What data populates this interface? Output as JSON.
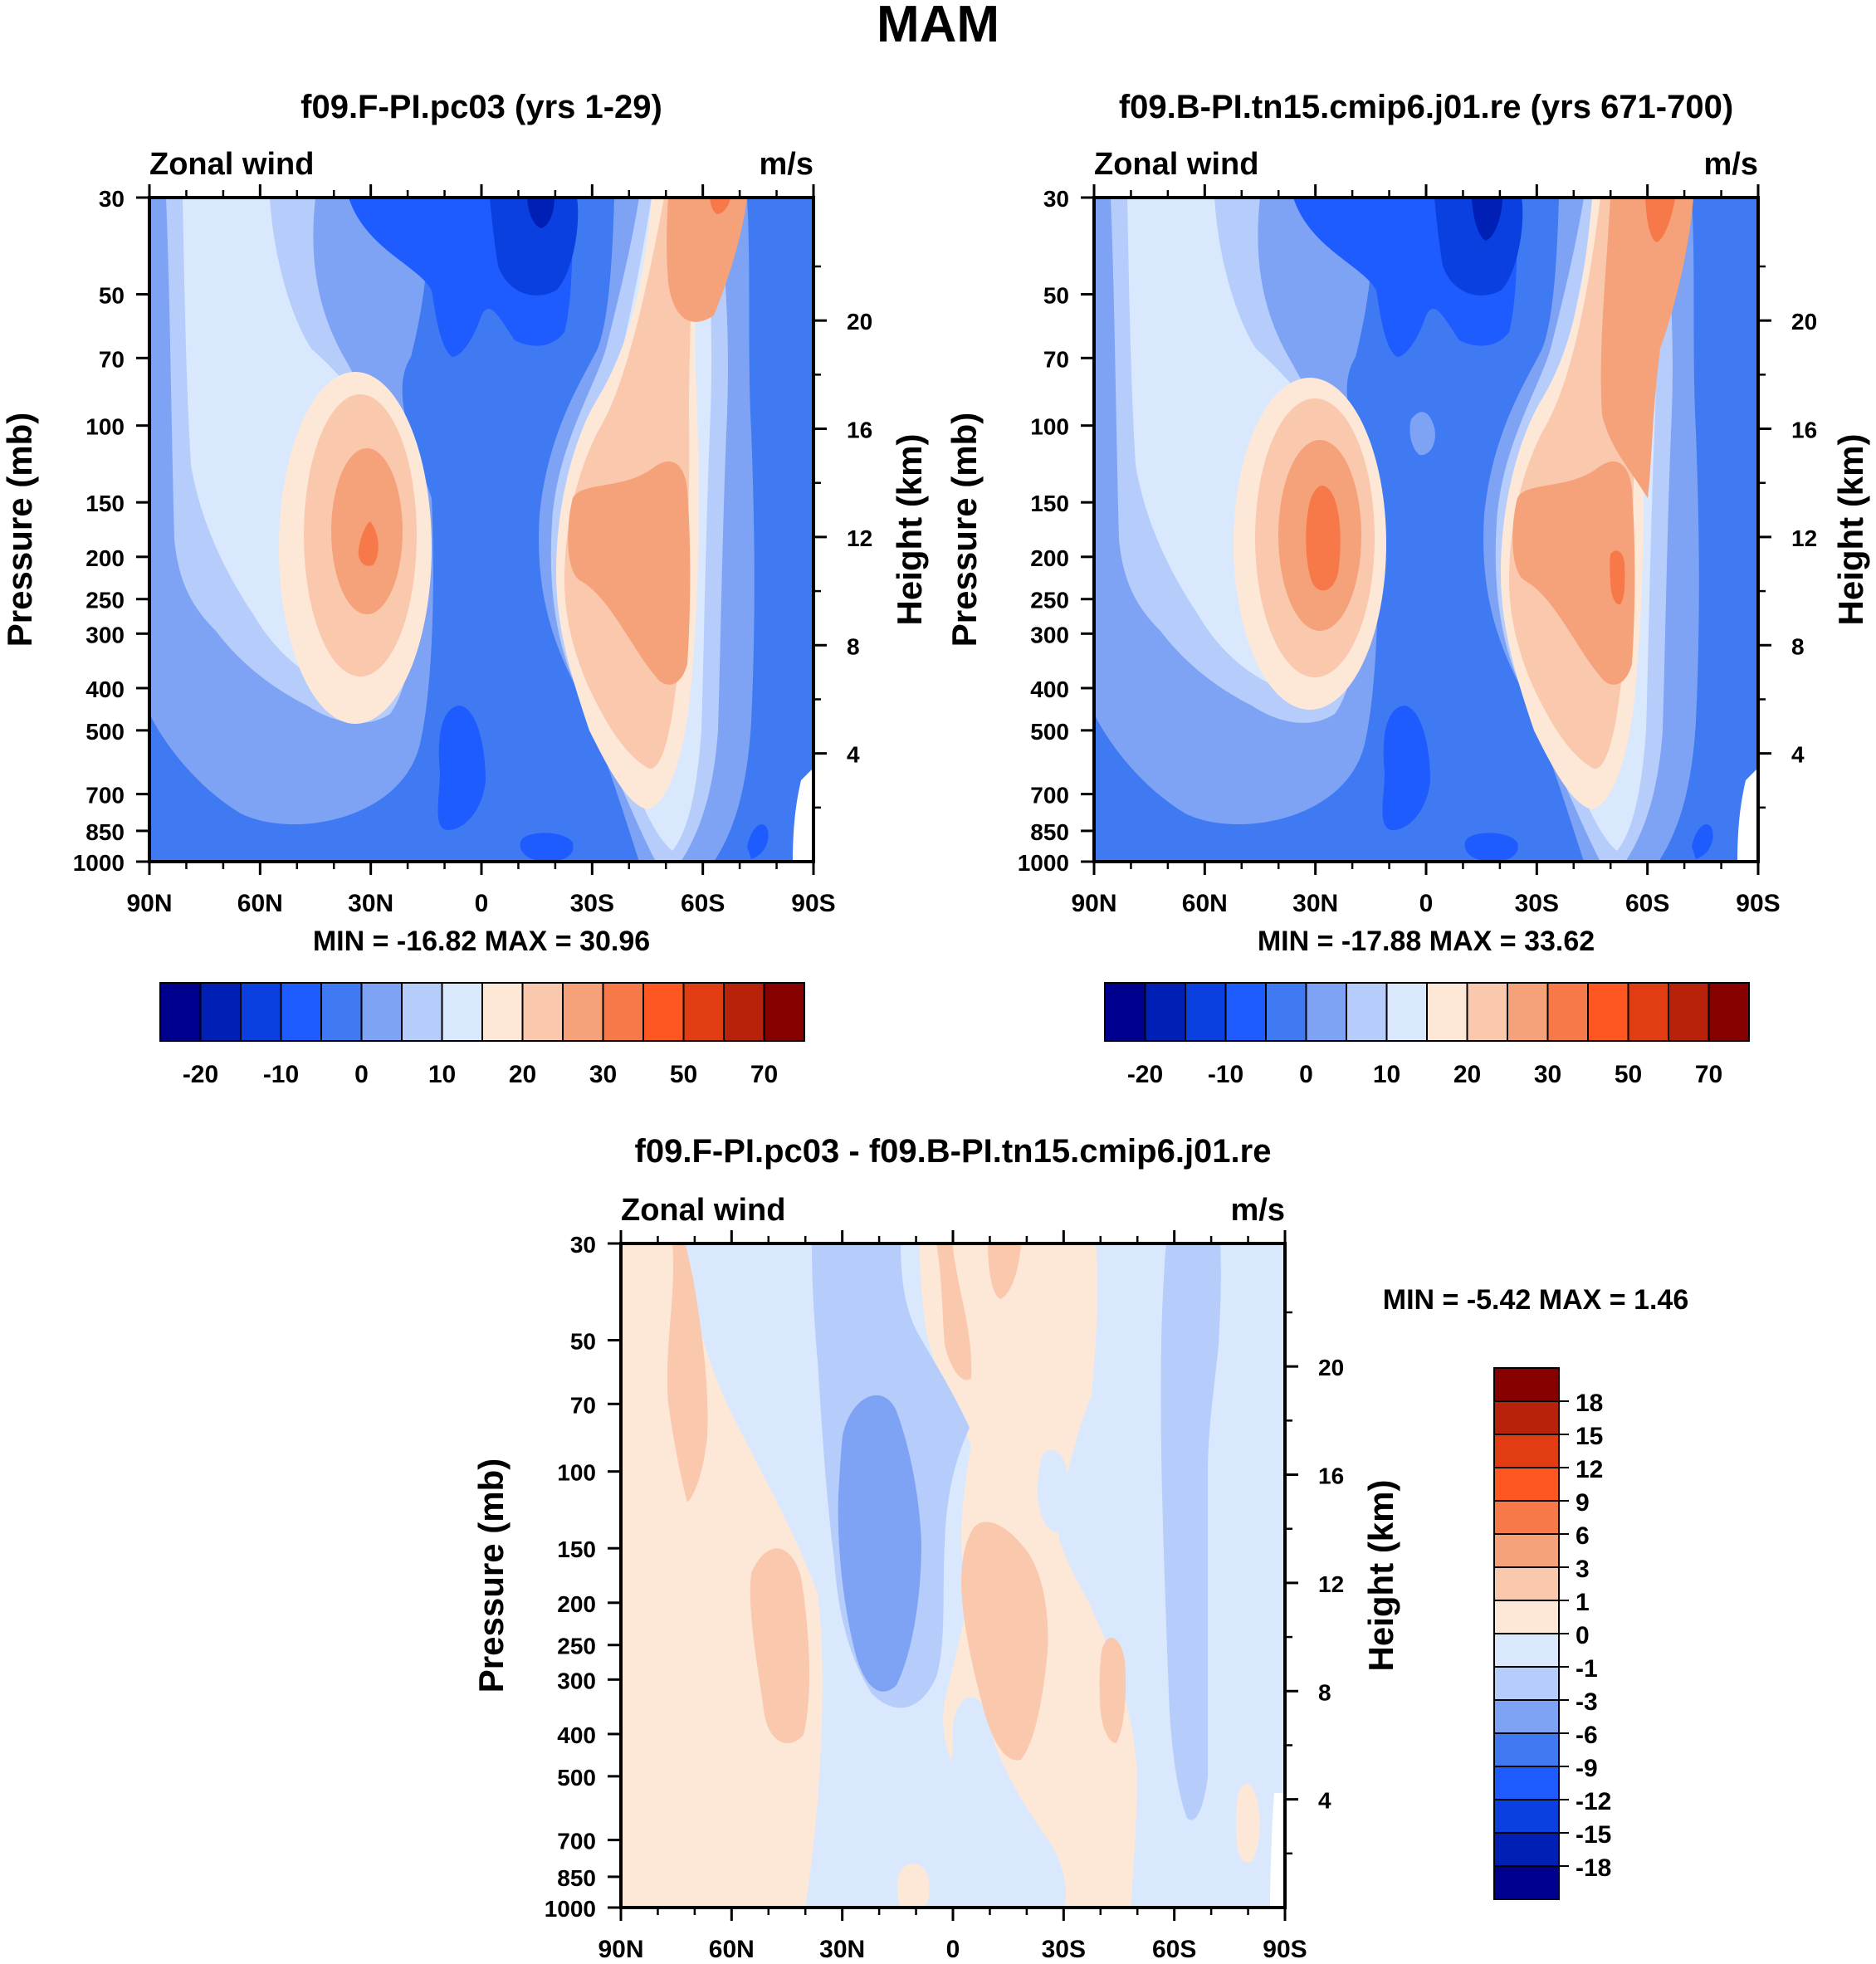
{
  "figure_title": "MAM",
  "chart_data": [
    {
      "type": "heatmap",
      "id": "panel_a",
      "title": "f09.F-PI.pc03 (yrs 1-29)",
      "subtitle_left": "Zonal wind",
      "subtitle_right": "m/s",
      "ylabel": "Pressure (mb)",
      "ylabel_right": "Height (km)",
      "x_ticks": [
        "90N",
        "60N",
        "30N",
        "0",
        "30S",
        "60S",
        "90S"
      ],
      "y_ticks": [
        "30",
        "50",
        "70",
        "100",
        "150",
        "200",
        "250",
        "300",
        "400",
        "500",
        "700",
        "850",
        "1000"
      ],
      "y_ticks_right": [
        "20",
        "16",
        "12",
        "8",
        "4"
      ],
      "stats": "MIN = -16.82  MAX =  30.96",
      "ylim": [
        1000,
        30
      ],
      "colorbar_ticks": [
        "-20",
        "-10",
        "0",
        "10",
        "20",
        "30",
        "50",
        "70"
      ]
    },
    {
      "type": "heatmap",
      "id": "panel_b",
      "title": "f09.B-PI.tn15.cmip6.j01.re (yrs 671-700)",
      "subtitle_left": "Zonal wind",
      "subtitle_right": "m/s",
      "ylabel": "Pressure (mb)",
      "ylabel_right": "Height (km)",
      "x_ticks": [
        "90N",
        "60N",
        "30N",
        "0",
        "30S",
        "60S",
        "90S"
      ],
      "y_ticks": [
        "30",
        "50",
        "70",
        "100",
        "150",
        "200",
        "250",
        "300",
        "400",
        "500",
        "700",
        "850",
        "1000"
      ],
      "y_ticks_right": [
        "20",
        "16",
        "12",
        "8",
        "4"
      ],
      "stats": "MIN = -17.88  MAX =  33.62",
      "ylim": [
        1000,
        30
      ],
      "colorbar_ticks": [
        "-20",
        "-10",
        "0",
        "10",
        "20",
        "30",
        "50",
        "70"
      ]
    },
    {
      "type": "heatmap",
      "id": "panel_c",
      "title": "f09.F-PI.pc03 - f09.B-PI.tn15.cmip6.j01.re",
      "subtitle_left": "Zonal wind",
      "subtitle_right": "m/s",
      "ylabel": "Pressure (mb)",
      "ylabel_right": "Height (km)",
      "x_ticks": [
        "90N",
        "60N",
        "30N",
        "0",
        "30S",
        "60S",
        "90S"
      ],
      "y_ticks": [
        "30",
        "50",
        "70",
        "100",
        "150",
        "200",
        "250",
        "300",
        "400",
        "500",
        "700",
        "850",
        "1000"
      ],
      "y_ticks_right": [
        "20",
        "16",
        "12",
        "8",
        "4"
      ],
      "stats": "MIN =  -5.42  MAX =   1.46",
      "ylim": [
        1000,
        30
      ],
      "colorbar_ticks": [
        "18",
        "15",
        "12",
        "9",
        "6",
        "3",
        "1",
        "0",
        "-1",
        "-3",
        "-6",
        "-9",
        "-12",
        "-15",
        "-18"
      ]
    }
  ],
  "palette": [
    "#00008f",
    "#0020b5",
    "#0a3fe0",
    "#1f5cff",
    "#3f7af2",
    "#7ea3f5",
    "#b6cdfb",
    "#d9e8fd",
    "#fde8d8",
    "#fac8ad",
    "#f5a27a",
    "#f7794a",
    "#ff5722",
    "#e23c12",
    "#b8210a",
    "#870000"
  ]
}
